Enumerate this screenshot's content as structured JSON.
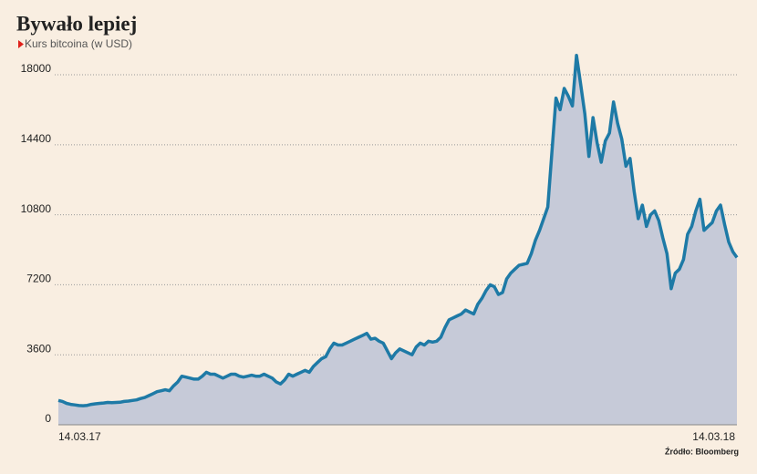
{
  "chart_data": {
    "type": "area",
    "title": "Bywało lepiej",
    "subtitle": "Kurs bitcoina (w USD)",
    "source": "Źródło: Bloomberg",
    "categories": [
      "14.03.17",
      null,
      null,
      null,
      null,
      null,
      null,
      null,
      null,
      null,
      null,
      null,
      null,
      null,
      null,
      null,
      null,
      null,
      null,
      null,
      null,
      null,
      null,
      null,
      null,
      null,
      null,
      null,
      null,
      null,
      null,
      null,
      null,
      null,
      null,
      null,
      null,
      null,
      null,
      null,
      null,
      null,
      null,
      null,
      null,
      null,
      null,
      null,
      null,
      null,
      null,
      null,
      null,
      null,
      null,
      null,
      null,
      null,
      null,
      null,
      null,
      null,
      null,
      null,
      null,
      null,
      null,
      null,
      null,
      null,
      null,
      null,
      null,
      null,
      null,
      null,
      null,
      null,
      null,
      null,
      null,
      null,
      null,
      null,
      null,
      null,
      null,
      null,
      null,
      null,
      null,
      null,
      null,
      null,
      null,
      null,
      null,
      null,
      null,
      null,
      null,
      null,
      null,
      null,
      null,
      null,
      null,
      null,
      null,
      null,
      null,
      null,
      null,
      null,
      null,
      null,
      null,
      null,
      null,
      null,
      null,
      null,
      null,
      null,
      null,
      null,
      null,
      null,
      null,
      null,
      null,
      null,
      null,
      null,
      null,
      null,
      null,
      null,
      null,
      null,
      null,
      null,
      null,
      null,
      null,
      null,
      null,
      null,
      null,
      null,
      null,
      null,
      null,
      null,
      null,
      null,
      null,
      null,
      null,
      null,
      null,
      null,
      null,
      null,
      null,
      "14.03.18"
    ],
    "values": [
      1250,
      1200,
      1100,
      1050,
      1020,
      990,
      980,
      1000,
      1050,
      1080,
      1100,
      1120,
      1150,
      1140,
      1150,
      1160,
      1200,
      1220,
      1250,
      1280,
      1350,
      1400,
      1500,
      1600,
      1700,
      1750,
      1800,
      1750,
      2000,
      2200,
      2500,
      2450,
      2400,
      2350,
      2350,
      2500,
      2700,
      2600,
      2600,
      2500,
      2400,
      2500,
      2600,
      2600,
      2500,
      2450,
      2500,
      2550,
      2500,
      2500,
      2600,
      2500,
      2400,
      2200,
      2100,
      2300,
      2600,
      2500,
      2600,
      2700,
      2800,
      2700,
      3000,
      3200,
      3400,
      3500,
      3900,
      4200,
      4100,
      4100,
      4200,
      4300,
      4400,
      4500,
      4600,
      4700,
      4400,
      4450,
      4300,
      4200,
      3800,
      3400,
      3700,
      3900,
      3800,
      3700,
      3600,
      4000,
      4200,
      4100,
      4300,
      4250,
      4300,
      4500,
      5000,
      5400,
      5500,
      5600,
      5700,
      5900,
      5800,
      5700,
      6200,
      6500,
      6900,
      7200,
      7100,
      6700,
      6800,
      7500,
      7800,
      8000,
      8200,
      8250,
      8300,
      8800,
      9500,
      10000,
      10600,
      11200,
      14000,
      16800,
      16200,
      17300,
      16900,
      16400,
      19000,
      17500,
      16000,
      13800,
      15800,
      14500,
      13500,
      14600,
      15000,
      16600,
      15500,
      14700,
      13300,
      13700,
      12000,
      10600,
      11300,
      10200,
      10800,
      11000,
      10500,
      9600,
      8800,
      7000,
      7800,
      8000,
      8500,
      9800,
      10200,
      11000,
      11600,
      10000,
      10200,
      10400,
      11000,
      11300,
      10300,
      9400,
      8900,
      8600
    ],
    "color": "#1e7aa6",
    "fill": "#c6cad8",
    "ylim": [
      0,
      19000
    ],
    "yticks": [
      0,
      3600,
      7200,
      10800,
      14400,
      18000
    ],
    "grid": true
  }
}
